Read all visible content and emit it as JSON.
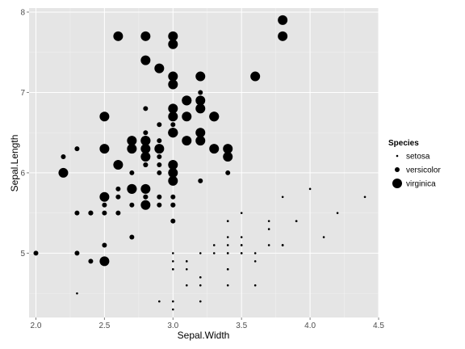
{
  "chart_data": {
    "type": "scatter",
    "xlabel": "Sepal.Width",
    "ylabel": "Sepal.Length",
    "xlim": [
      1.95,
      4.5
    ],
    "ylim": [
      4.2,
      8.05
    ],
    "x_ticks": [
      2.0,
      2.5,
      3.0,
      3.5,
      4.0,
      4.5
    ],
    "x_tick_labels": [
      "2.0",
      "2.5",
      "3.0",
      "3.5",
      "4.0",
      "4.5"
    ],
    "y_ticks": [
      5,
      6,
      7,
      8
    ],
    "y_tick_labels": [
      "5",
      "6",
      "7",
      "8"
    ],
    "grid": true,
    "panel_background": "#e5e5e5",
    "grid_color": "#ffffff",
    "point_color": "#000000",
    "legend": {
      "title": "Species",
      "placement": "right",
      "entries": [
        "setosa",
        "versicolor",
        "virginica"
      ]
    },
    "series": [
      {
        "name": "setosa",
        "size_rank": 1,
        "points": [
          [
            3.5,
            5.1
          ],
          [
            3.0,
            4.9
          ],
          [
            3.2,
            4.7
          ],
          [
            3.1,
            4.6
          ],
          [
            3.6,
            5.0
          ],
          [
            3.9,
            5.4
          ],
          [
            3.4,
            4.6
          ],
          [
            3.4,
            5.0
          ],
          [
            2.9,
            4.4
          ],
          [
            3.1,
            4.9
          ],
          [
            3.7,
            5.4
          ],
          [
            3.4,
            4.8
          ],
          [
            3.0,
            4.8
          ],
          [
            3.0,
            4.3
          ],
          [
            4.0,
            5.8
          ],
          [
            4.4,
            5.7
          ],
          [
            3.9,
            5.4
          ],
          [
            3.5,
            5.1
          ],
          [
            3.8,
            5.7
          ],
          [
            3.8,
            5.1
          ],
          [
            3.4,
            5.4
          ],
          [
            3.7,
            5.1
          ],
          [
            3.6,
            4.6
          ],
          [
            3.3,
            5.1
          ],
          [
            3.4,
            4.8
          ],
          [
            3.0,
            5.0
          ],
          [
            3.4,
            5.0
          ],
          [
            3.5,
            5.2
          ],
          [
            3.4,
            5.2
          ],
          [
            3.2,
            4.7
          ],
          [
            3.1,
            4.8
          ],
          [
            3.4,
            5.4
          ],
          [
            4.1,
            5.2
          ],
          [
            4.2,
            5.5
          ],
          [
            3.1,
            4.9
          ],
          [
            3.2,
            5.0
          ],
          [
            3.5,
            5.5
          ],
          [
            3.6,
            4.9
          ],
          [
            3.0,
            4.4
          ],
          [
            3.4,
            5.1
          ],
          [
            3.5,
            5.0
          ],
          [
            2.3,
            4.5
          ],
          [
            3.2,
            4.4
          ],
          [
            3.5,
            5.0
          ],
          [
            3.8,
            5.1
          ],
          [
            3.0,
            4.8
          ],
          [
            3.8,
            5.1
          ],
          [
            3.2,
            4.6
          ],
          [
            3.7,
            5.3
          ],
          [
            3.3,
            5.0
          ]
        ]
      },
      {
        "name": "versicolor",
        "size_rank": 2,
        "points": [
          [
            3.2,
            7.0
          ],
          [
            3.2,
            6.4
          ],
          [
            3.1,
            6.9
          ],
          [
            2.3,
            5.5
          ],
          [
            2.8,
            6.5
          ],
          [
            2.8,
            5.7
          ],
          [
            3.3,
            6.3
          ],
          [
            2.4,
            4.9
          ],
          [
            2.9,
            6.6
          ],
          [
            2.7,
            5.2
          ],
          [
            2.0,
            5.0
          ],
          [
            3.0,
            5.9
          ],
          [
            2.2,
            6.0
          ],
          [
            2.9,
            6.1
          ],
          [
            2.9,
            5.6
          ],
          [
            3.1,
            6.7
          ],
          [
            3.0,
            5.6
          ],
          [
            2.7,
            5.8
          ],
          [
            2.2,
            6.2
          ],
          [
            2.5,
            5.6
          ],
          [
            3.2,
            5.9
          ],
          [
            2.8,
            6.1
          ],
          [
            2.5,
            6.3
          ],
          [
            2.8,
            6.1
          ],
          [
            2.9,
            6.4
          ],
          [
            3.0,
            6.6
          ],
          [
            2.8,
            6.8
          ],
          [
            3.0,
            6.7
          ],
          [
            2.9,
            6.0
          ],
          [
            2.6,
            5.7
          ],
          [
            2.4,
            5.5
          ],
          [
            2.4,
            5.5
          ],
          [
            2.7,
            5.8
          ],
          [
            2.7,
            6.0
          ],
          [
            3.0,
            5.4
          ],
          [
            3.4,
            6.0
          ],
          [
            3.1,
            6.7
          ],
          [
            2.3,
            6.3
          ],
          [
            3.0,
            5.6
          ],
          [
            2.5,
            5.5
          ],
          [
            2.6,
            5.5
          ],
          [
            3.0,
            6.1
          ],
          [
            2.6,
            5.8
          ],
          [
            2.3,
            5.0
          ],
          [
            2.7,
            5.6
          ],
          [
            3.0,
            5.7
          ],
          [
            2.9,
            5.7
          ],
          [
            2.9,
            6.2
          ],
          [
            2.5,
            5.1
          ],
          [
            2.8,
            5.7
          ]
        ]
      },
      {
        "name": "virginica",
        "size_rank": 3,
        "points": [
          [
            3.3,
            6.3
          ],
          [
            2.7,
            5.8
          ],
          [
            3.0,
            7.1
          ],
          [
            2.9,
            6.3
          ],
          [
            3.0,
            6.5
          ],
          [
            3.0,
            7.6
          ],
          [
            2.5,
            4.9
          ],
          [
            2.9,
            7.3
          ],
          [
            2.5,
            6.7
          ],
          [
            3.6,
            7.2
          ],
          [
            3.2,
            6.5
          ],
          [
            2.7,
            6.4
          ],
          [
            3.0,
            6.8
          ],
          [
            2.5,
            5.7
          ],
          [
            2.8,
            5.8
          ],
          [
            3.2,
            6.4
          ],
          [
            3.0,
            6.5
          ],
          [
            3.8,
            7.7
          ],
          [
            2.6,
            7.7
          ],
          [
            2.2,
            6.0
          ],
          [
            3.2,
            6.9
          ],
          [
            2.8,
            5.6
          ],
          [
            2.8,
            7.7
          ],
          [
            2.7,
            6.3
          ],
          [
            3.3,
            6.7
          ],
          [
            3.2,
            7.2
          ],
          [
            2.8,
            6.2
          ],
          [
            3.0,
            6.1
          ],
          [
            2.8,
            6.4
          ],
          [
            3.0,
            7.2
          ],
          [
            2.8,
            7.4
          ],
          [
            3.8,
            7.9
          ],
          [
            2.8,
            6.4
          ],
          [
            2.8,
            6.3
          ],
          [
            2.6,
            6.1
          ],
          [
            3.0,
            7.7
          ],
          [
            3.4,
            6.3
          ],
          [
            3.1,
            6.4
          ],
          [
            3.0,
            6.0
          ],
          [
            3.1,
            6.9
          ],
          [
            3.1,
            6.7
          ],
          [
            3.1,
            6.9
          ],
          [
            2.7,
            5.8
          ],
          [
            3.2,
            6.8
          ],
          [
            3.3,
            6.7
          ],
          [
            3.0,
            6.7
          ],
          [
            2.5,
            6.3
          ],
          [
            3.0,
            6.5
          ],
          [
            3.4,
            6.2
          ],
          [
            3.0,
            5.9
          ]
        ]
      }
    ]
  }
}
